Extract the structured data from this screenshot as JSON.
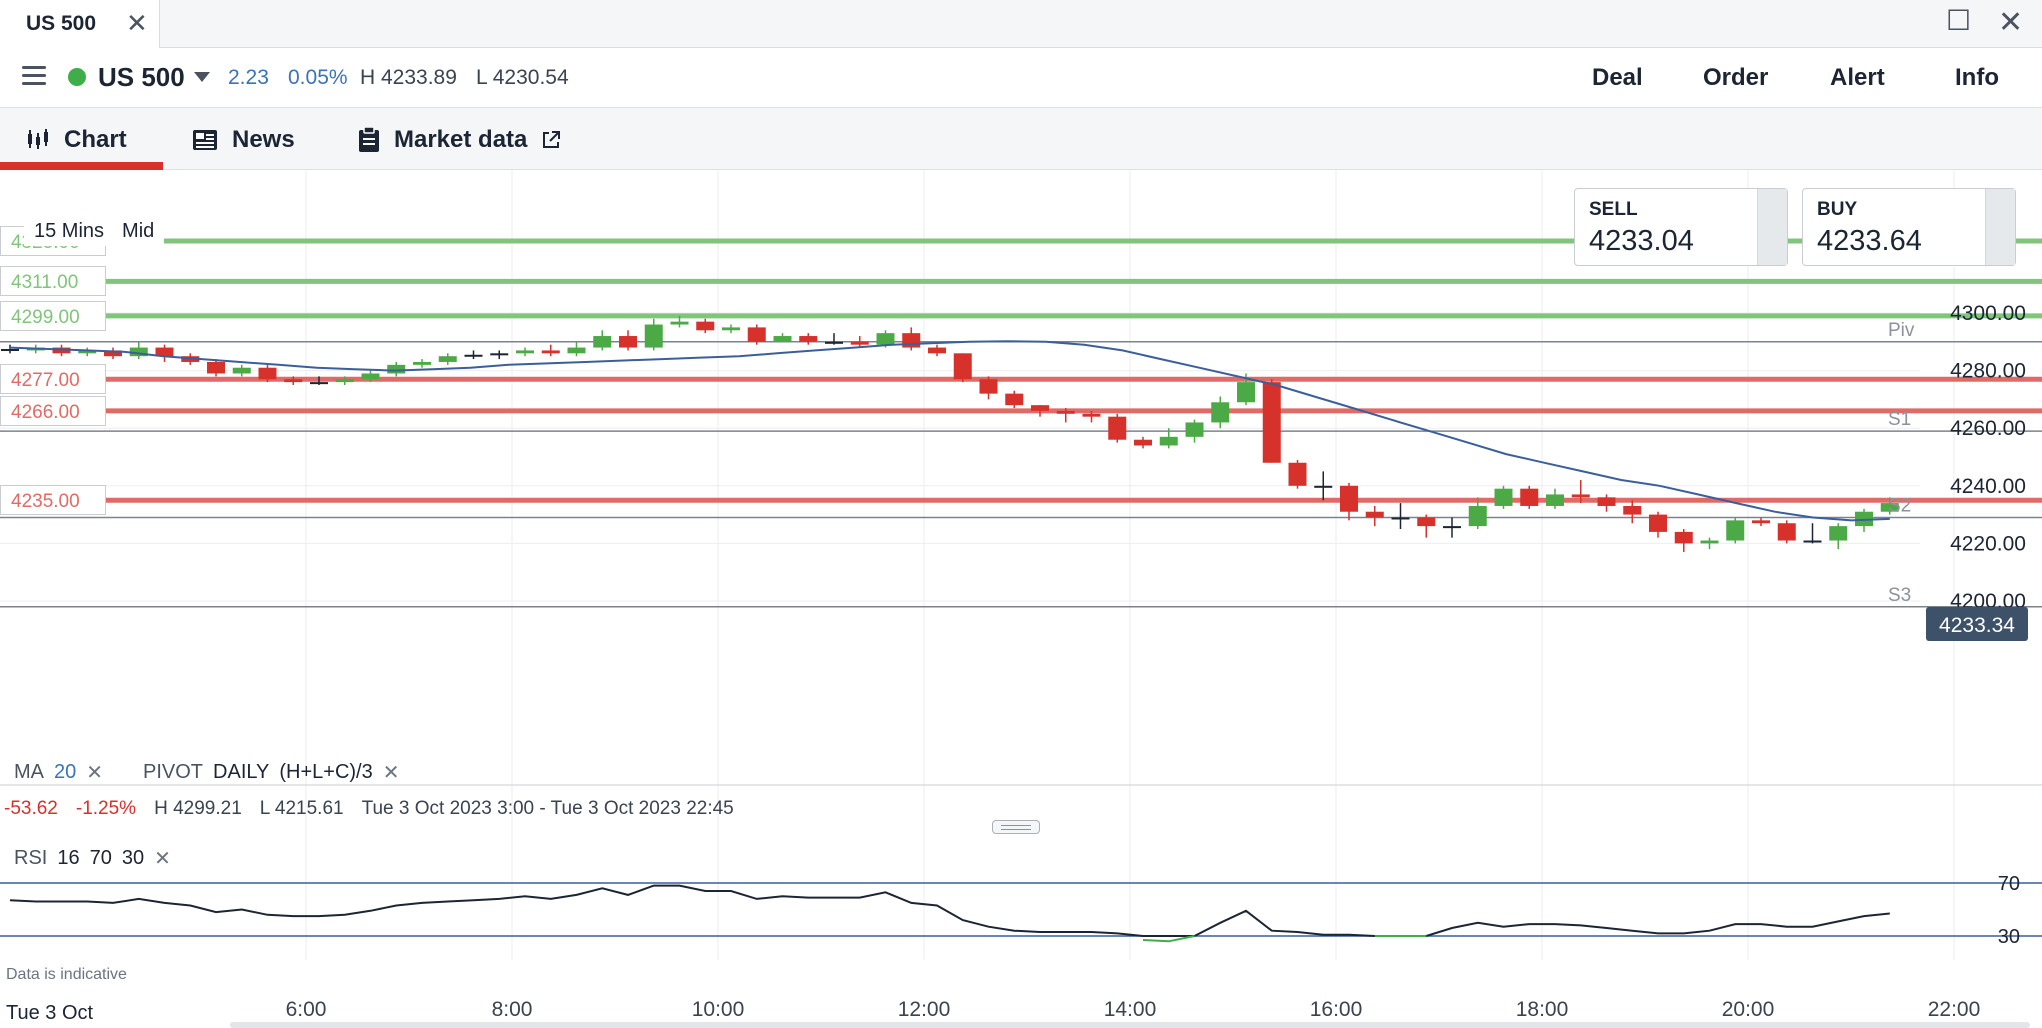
{
  "tab": {
    "title": "US 500"
  },
  "header": {
    "instrument": "US 500",
    "change_abs": "2.23",
    "change_pct": "0.05%",
    "high": "H 4233.89",
    "low": "L 4230.54",
    "actions": [
      "Deal",
      "Order",
      "Alert",
      "Info"
    ],
    "status_color": "#3fae49"
  },
  "view_tabs": {
    "chart": "Chart",
    "news": "News",
    "market_data": "Market data"
  },
  "timeframe": {
    "interval": "15 Mins",
    "price_type": "Mid"
  },
  "sell": {
    "label": "SELL",
    "price": "4233.04"
  },
  "buy": {
    "label": "BUY",
    "price": "4233.64"
  },
  "levels": [
    {
      "label": "4325.00",
      "price": 4325,
      "color": "#7fc57a"
    },
    {
      "label": "4311.00",
      "price": 4311,
      "color": "#7fc57a"
    },
    {
      "label": "4299.00",
      "price": 4299,
      "color": "#7fc57a"
    },
    {
      "label": "4277.00",
      "price": 4277,
      "color": "#e06b66"
    },
    {
      "label": "4266.00",
      "price": 4266,
      "color": "#e06b66"
    },
    {
      "label": "4235.00",
      "price": 4235,
      "color": "#e06b66"
    }
  ],
  "pivots": [
    {
      "label": "Piv",
      "price": 4290
    },
    {
      "label": "S1",
      "price": 4259
    },
    {
      "label": "S2",
      "price": 4229
    },
    {
      "label": "S3",
      "price": 4198
    }
  ],
  "current_price": "4233.34",
  "indicators": {
    "ma_label": "MA",
    "ma_period": "20",
    "pivot_label": "PIVOT",
    "pivot_period": "DAILY",
    "pivot_formula": "(H+L+C)/3",
    "rsi_label": "RSI",
    "rsi_p1": "16",
    "rsi_p2": "70",
    "rsi_p3": "30"
  },
  "summary": {
    "change": "-53.62",
    "change_pct": "-1.25%",
    "high": "H 4299.21",
    "low": "L 4215.61",
    "range": "Tue 3 Oct 2023 3:00 - Tue 3 Oct 2023 22:45"
  },
  "footer": {
    "indicative": "Data is indicative",
    "date": "Tue 3 Oct"
  },
  "chart_data": {
    "type": "candlestick",
    "interval_minutes": 15,
    "x_ticks": [
      "6:00",
      "8:00",
      "10:00",
      "12:00",
      "14:00",
      "16:00",
      "18:00",
      "20:00",
      "22:00"
    ],
    "y_ticks": [
      "4200.00",
      "4220.00",
      "4240.00",
      "4260.00",
      "4280.00",
      "4300.00"
    ],
    "ylim": [
      4200,
      4300
    ],
    "candles": [
      [
        4287.5,
        4287,
        4289,
        4286
      ],
      [
        4287,
        4288,
        4289,
        4286
      ],
      [
        4288,
        4286,
        4289,
        4285
      ],
      [
        4286,
        4287,
        4288,
        4285
      ],
      [
        4287,
        4285,
        4288,
        4284
      ],
      [
        4285,
        4288,
        4290,
        4284
      ],
      [
        4288,
        4285,
        4289,
        4283
      ],
      [
        4285,
        4283,
        4286,
        4282
      ],
      [
        4283,
        4279,
        4284,
        4278
      ],
      [
        4279,
        4281,
        4282,
        4278
      ],
      [
        4281,
        4277,
        4282,
        4276
      ],
      [
        4277,
        4276,
        4278,
        4275
      ],
      [
        4276,
        4276,
        4278,
        4275
      ],
      [
        4276,
        4277,
        4278,
        4275
      ],
      [
        4277,
        4279,
        4280,
        4276
      ],
      [
        4279,
        4282,
        4283,
        4278
      ],
      [
        4282,
        4283,
        4284,
        4281
      ],
      [
        4283,
        4285,
        4286,
        4282
      ],
      [
        4285,
        4285.5,
        4287,
        4284
      ],
      [
        4285.5,
        4286,
        4287,
        4284
      ],
      [
        4286,
        4287,
        4288,
        4285
      ],
      [
        4287,
        4286,
        4289,
        4285
      ],
      [
        4286,
        4288,
        4290,
        4285
      ],
      [
        4288,
        4292,
        4294,
        4287
      ],
      [
        4292,
        4288,
        4294,
        4287
      ],
      [
        4288,
        4296,
        4298,
        4287
      ],
      [
        4296,
        4297,
        4299,
        4295
      ],
      [
        4297,
        4294,
        4298,
        4293
      ],
      [
        4294,
        4295,
        4296,
        4293
      ],
      [
        4295,
        4290,
        4296,
        4289
      ],
      [
        4290,
        4292,
        4293,
        4290
      ],
      [
        4292,
        4290,
        4293,
        4289
      ],
      [
        4290,
        4290,
        4293,
        4289
      ],
      [
        4290,
        4289,
        4292,
        4288
      ],
      [
        4289,
        4293,
        4294,
        4288
      ],
      [
        4293,
        4288,
        4295,
        4287
      ],
      [
        4288,
        4286,
        4289,
        4285
      ],
      [
        4286,
        4277,
        4286,
        4276
      ],
      [
        4277,
        4272,
        4278,
        4270
      ],
      [
        4272,
        4268,
        4273,
        4267
      ],
      [
        4268,
        4266,
        4268,
        4264
      ],
      [
        4266,
        4265,
        4267,
        4262
      ],
      [
        4265,
        4264,
        4266,
        4262
      ],
      [
        4264,
        4256,
        4265,
        4255
      ],
      [
        4256,
        4254,
        4257,
        4253
      ],
      [
        4254,
        4257,
        4260,
        4253
      ],
      [
        4257,
        4262,
        4263,
        4255
      ],
      [
        4262,
        4269,
        4271,
        4260
      ],
      [
        4269,
        4276,
        4279,
        4268
      ],
      [
        4276,
        4248,
        4277,
        4248
      ],
      [
        4248,
        4240,
        4249,
        4239
      ],
      [
        4240,
        4240,
        4245,
        4235
      ],
      [
        4240,
        4231,
        4241,
        4228
      ],
      [
        4231,
        4229,
        4233,
        4226
      ],
      [
        4229,
        4229,
        4234,
        4225
      ],
      [
        4229,
        4226,
        4230,
        4222
      ],
      [
        4226,
        4226,
        4229,
        4222
      ],
      [
        4226,
        4233,
        4236,
        4225
      ],
      [
        4233,
        4239,
        4240,
        4232
      ],
      [
        4239,
        4233,
        4240,
        4232
      ],
      [
        4233,
        4237,
        4239,
        4232
      ],
      [
        4237,
        4236,
        4242,
        4234
      ],
      [
        4236,
        4233,
        4237,
        4231
      ],
      [
        4233,
        4230,
        4235,
        4227
      ],
      [
        4230,
        4224,
        4231,
        4222
      ],
      [
        4224,
        4220,
        4225,
        4217
      ],
      [
        4220,
        4221,
        4222,
        4218
      ],
      [
        4221,
        4228,
        4229,
        4220
      ],
      [
        4228,
        4227,
        4229,
        4226
      ],
      [
        4227,
        4221,
        4228,
        4220
      ],
      [
        4221,
        4221,
        4227,
        4220
      ],
      [
        4221,
        4226,
        4227,
        4218
      ],
      [
        4226,
        4231,
        4232,
        4224
      ],
      [
        4231,
        4234,
        4236,
        4230
      ]
    ],
    "ma20": [
      4288,
      4287.5,
      4287,
      4286.5,
      4285,
      4284,
      4283,
      4282,
      4281,
      4280.5,
      4280,
      4280.5,
      4281,
      4282,
      4282.5,
      4283,
      4283.5,
      4284,
      4284.5,
      4285,
      4286,
      4287,
      4288,
      4289,
      4289.5,
      4290,
      4290.2,
      4290,
      4289,
      4287,
      4284,
      4281,
      4278,
      4275,
      4271,
      4267,
      4263,
      4259,
      4255,
      4251,
      4248,
      4245,
      4242,
      4240,
      4237,
      4234,
      4231,
      4229,
      4228,
      4228.5
    ],
    "rsi": [
      57,
      56,
      56,
      56,
      55,
      58,
      55,
      53,
      48,
      50,
      46,
      45,
      45,
      46,
      49,
      53,
      55,
      56,
      57,
      58,
      60,
      58,
      61,
      66,
      61,
      68,
      68,
      64,
      64,
      58,
      60,
      59,
      59,
      59,
      63,
      55,
      53,
      42,
      37,
      34,
      33,
      33,
      33,
      32,
      27,
      26,
      30,
      40,
      49,
      34,
      33,
      31,
      31,
      30,
      30,
      30,
      36,
      40,
      37,
      39,
      39,
      38,
      36,
      34,
      32,
      32,
      34,
      39,
      39,
      37,
      37,
      41,
      45,
      47
    ],
    "rsi_levels": [
      70,
      30
    ]
  }
}
